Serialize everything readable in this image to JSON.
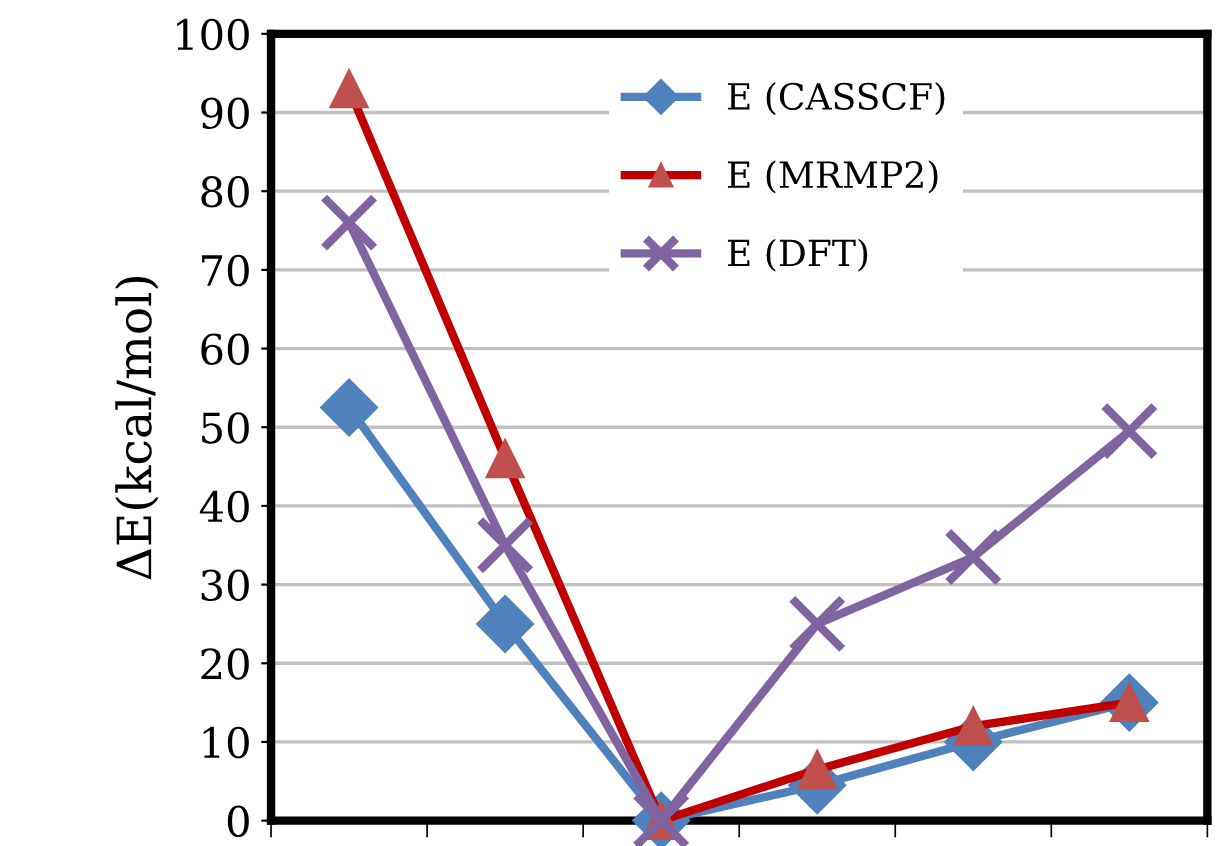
{
  "chart_data": {
    "type": "line",
    "ylabel": "ΔE(kcal/mol)",
    "categories": [
      null,
      null,
      null,
      null,
      null,
      null
    ],
    "series": [
      {
        "name": "E (CASSCF)",
        "color": "#4f81bd",
        "marker": "diamond",
        "values": [
          52.5,
          25,
          0,
          4.5,
          10,
          15
        ]
      },
      {
        "name": "E (MRMP2)",
        "color": "#c00000",
        "marker": "triangle",
        "values": [
          93,
          46,
          0,
          6.5,
          12,
          15
        ]
      },
      {
        "name": "E (DFT)",
        "color": "#8064a2",
        "marker": "cross",
        "values": [
          76,
          35,
          0,
          25,
          33.5,
          49.5
        ]
      }
    ],
    "ylim": [
      0,
      100
    ],
    "yticks": [
      0,
      10,
      20,
      30,
      40,
      50,
      60,
      70,
      80,
      90,
      100
    ],
    "grid": "y",
    "legend": "top"
  }
}
